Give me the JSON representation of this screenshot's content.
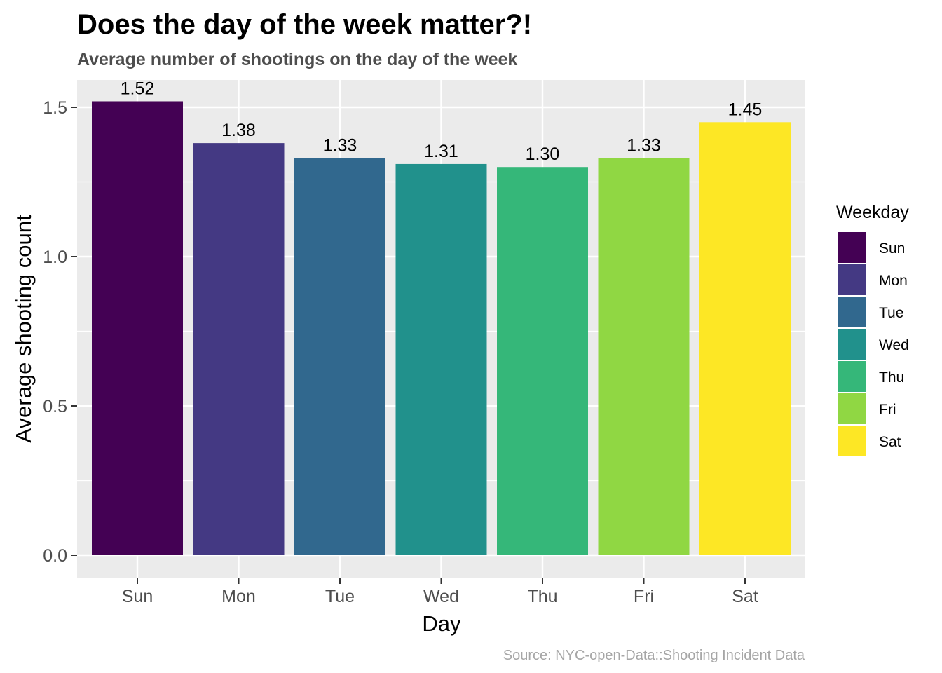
{
  "chart_data": {
    "type": "bar",
    "title": "Does the day of the week matter?!",
    "subtitle": "Average number of shootings on the day of the week",
    "xlabel": "Day",
    "ylabel": "Average shooting count",
    "categories": [
      "Sun",
      "Mon",
      "Tue",
      "Wed",
      "Thu",
      "Fri",
      "Sat"
    ],
    "values": [
      1.52,
      1.38,
      1.33,
      1.31,
      1.3,
      1.33,
      1.45
    ],
    "data_labels": [
      "1.52",
      "1.38",
      "1.33",
      "1.31",
      "1.30",
      "1.33",
      "1.45"
    ],
    "colors": [
      "#440154",
      "#443983",
      "#31688E",
      "#21918C",
      "#35B779",
      "#90D743",
      "#FDE725"
    ],
    "ylim": [
      0,
      1.6
    ],
    "y_ticks": [
      0,
      0.5,
      1.0,
      1.5
    ],
    "y_tick_labels": [
      "0.0",
      "0.5",
      "1.0",
      "1.5"
    ],
    "grid": true,
    "legend": {
      "title": "Weekday",
      "position": "right",
      "entries": [
        "Sun",
        "Mon",
        "Tue",
        "Wed",
        "Thu",
        "Fri",
        "Sat"
      ]
    },
    "caption": "Source: NYC-open-Data::Shooting Incident Data"
  }
}
